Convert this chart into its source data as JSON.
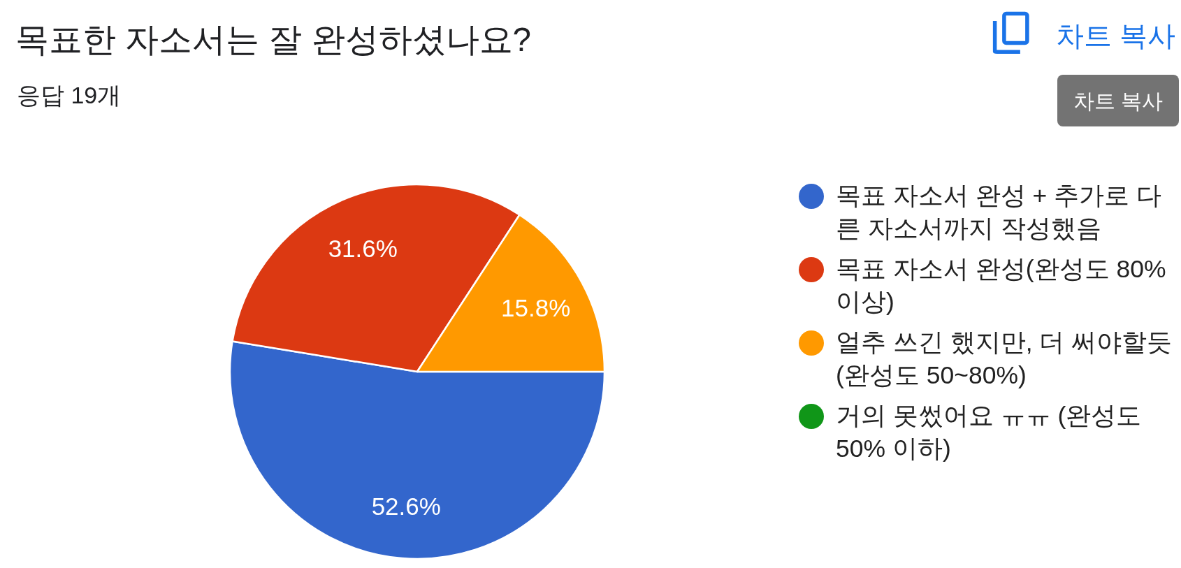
{
  "chart_data": {
    "type": "pie",
    "title": "목표한 자소서는 잘 완성하셨나요?",
    "subtitle": "응답 19개",
    "categories": [
      "목표 자소서 완성 + 추가로 다른 자소서까지 작성했음",
      "목표 자소서 완성(완성도 80% 이상)",
      "얼추 쓰긴 했지만, 더 써야할듯(완성도 50~80%)",
      "거의 못썼어요 ㅠㅠ (완성도 50% 이하)"
    ],
    "values": [
      52.6,
      31.6,
      15.8,
      0
    ],
    "colors": [
      "#3366cc",
      "#dc3912",
      "#ff9900",
      "#109618"
    ],
    "value_labels": [
      "52.6%",
      "31.6%",
      "15.8%",
      null
    ],
    "legend": "right",
    "annotations": [
      "차트 복사",
      "차트 복사"
    ]
  }
}
